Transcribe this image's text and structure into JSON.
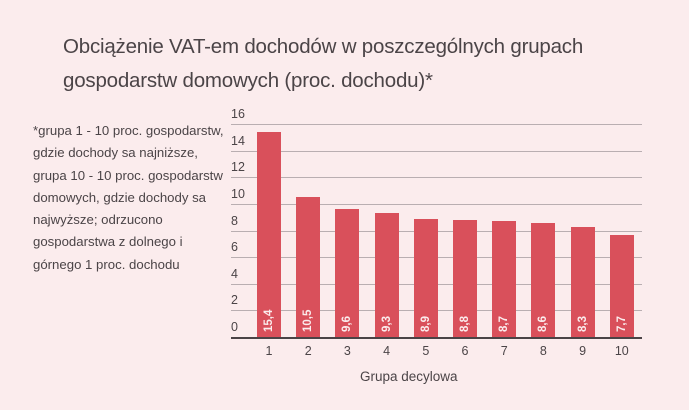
{
  "title": "Obciążenie VAT-em dochodów w poszczególnych grupach gospodarstw domowych (proc. dochodu)*",
  "note": "*grupa 1 - 10 proc. gospodarstw, gdzie dochody sa najniższe, grupa 10 - 10 proc. gospodarstw domowych, gdzie dochody sa najwyższe; odrzucono gospodarstwa z dolnego i górnego 1 proc. dochodu",
  "colors": {
    "background": "#fbeced",
    "bar": "#d9505b",
    "text": "#4b4447",
    "grid": "#b9aeb1"
  },
  "chart_data": {
    "type": "bar",
    "title": "Obciążenie VAT-em dochodów w poszczególnych grupach gospodarstw domowych (proc. dochodu)*",
    "xlabel": "Grupa decylowa",
    "ylabel": "",
    "categories": [
      "1",
      "2",
      "3",
      "4",
      "5",
      "6",
      "7",
      "8",
      "9",
      "10"
    ],
    "values": [
      15.4,
      10.5,
      9.6,
      9.3,
      8.9,
      8.8,
      8.7,
      8.6,
      8.3,
      7.7
    ],
    "value_labels": [
      "15,4",
      "10,5",
      "9,6",
      "9,3",
      "8,9",
      "8,8",
      "8,7",
      "8,6",
      "8,3",
      "7,7"
    ],
    "yticks": [
      "0",
      "2",
      "4",
      "6",
      "8",
      "10",
      "12",
      "14",
      "16"
    ],
    "ylim": [
      0,
      16
    ],
    "grid": true,
    "legend": null
  }
}
